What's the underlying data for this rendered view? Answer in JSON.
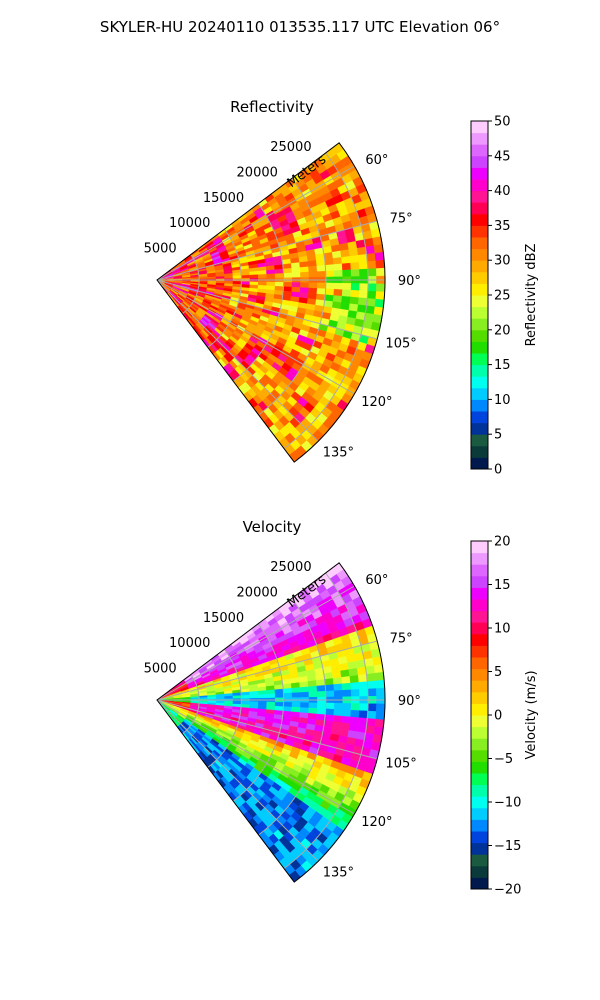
{
  "figure": {
    "suptitle": "SKYLER-HU  20240110  013535.117 UTC Elevation 06°"
  },
  "chart_data": [
    {
      "type": "heatmap",
      "title": "Reflectivity",
      "range_axis_label": "Meters",
      "range_ticks": [
        5000,
        10000,
        15000,
        20000,
        25000
      ],
      "range_tick_labels": [
        "5000",
        "10000",
        "15000",
        "20000",
        "25000"
      ],
      "range_max": 27000,
      "azimuth_range_deg": [
        53,
        143
      ],
      "azimuth_ticks_deg": [
        60,
        75,
        90,
        105,
        120,
        135
      ],
      "azimuth_tick_labels": [
        "60°",
        "75°",
        "90°",
        "105°",
        "120°",
        "135°"
      ],
      "grid": true,
      "colorbar": {
        "label": "Reflectivity dBZ",
        "min": 0,
        "max": 50,
        "ticks": [
          0,
          5,
          10,
          15,
          20,
          25,
          30,
          35,
          40,
          45,
          50
        ],
        "tick_labels": [
          "0",
          "5",
          "10",
          "15",
          "20",
          "25",
          "30",
          "35",
          "40",
          "45",
          "50"
        ],
        "colors": [
          "#001a4d",
          "#0a3a3a",
          "#1a5a40",
          "#003399",
          "#0044dd",
          "#0088ff",
          "#00ccff",
          "#00ffee",
          "#00ffaa",
          "#00ff55",
          "#22dd00",
          "#55dd00",
          "#88ee22",
          "#bbff33",
          "#eeff33",
          "#ffee00",
          "#ffcc00",
          "#ffaa00",
          "#ff8800",
          "#ff6600",
          "#ff3300",
          "#ff0000",
          "#ff0055",
          "#ff1493",
          "#ff00cc",
          "#ee00ff",
          "#cc44ff",
          "#dd66ff",
          "#ee99ff",
          "#ffccff"
        ]
      },
      "field_notes": "Mostly 25–35 dBZ (yellow/orange) with embedded 35–40 dBZ (red) cells; strongest echoes near radar; 20–25 dBZ (green) near the far edge around 90–105°."
    },
    {
      "type": "heatmap",
      "title": "Velocity",
      "range_axis_label": "Meters",
      "range_ticks": [
        5000,
        10000,
        15000,
        20000,
        25000
      ],
      "range_tick_labels": [
        "5000",
        "10000",
        "15000",
        "20000",
        "25000"
      ],
      "range_max": 27000,
      "azimuth_range_deg": [
        53,
        143
      ],
      "azimuth_ticks_deg": [
        60,
        75,
        90,
        105,
        120,
        135
      ],
      "azimuth_tick_labels": [
        "60°",
        "75°",
        "90°",
        "105°",
        "120°",
        "135°"
      ],
      "grid": true,
      "colorbar": {
        "label": "Velocity (m/s)",
        "min": -20,
        "max": 20,
        "ticks": [
          -20,
          -15,
          -10,
          -5,
          0,
          5,
          10,
          15,
          20
        ],
        "tick_labels": [
          "−20",
          "−15",
          "−10",
          "−5",
          "0",
          "5",
          "10",
          "15",
          "20"
        ],
        "colors": [
          "#001a4d",
          "#0a3a3a",
          "#1a5a40",
          "#003399",
          "#0044dd",
          "#0088ff",
          "#00ccff",
          "#00ffee",
          "#00ffaa",
          "#00ff55",
          "#22dd00",
          "#55dd00",
          "#88ee22",
          "#bbff33",
          "#eeff33",
          "#ffee00",
          "#ffcc00",
          "#ffaa00",
          "#ff8800",
          "#ff6600",
          "#ff3300",
          "#ff0000",
          "#ff0055",
          "#ff1493",
          "#ff00cc",
          "#ee00ff",
          "#cc44ff",
          "#dd66ff",
          "#ee99ff",
          "#ffccff"
        ]
      },
      "field_notes": "Magenta/red (+10 to +20 m/s) near 60–70°; yellow/green (0 to −5 m/s) band at 75–85°; cyan (−10 m/s) tongue along 90°; red/magenta (+10 to +20) south of 90°; cyan/green (−10 to −5) and blue (−15) along the 125–135° edge."
    }
  ]
}
